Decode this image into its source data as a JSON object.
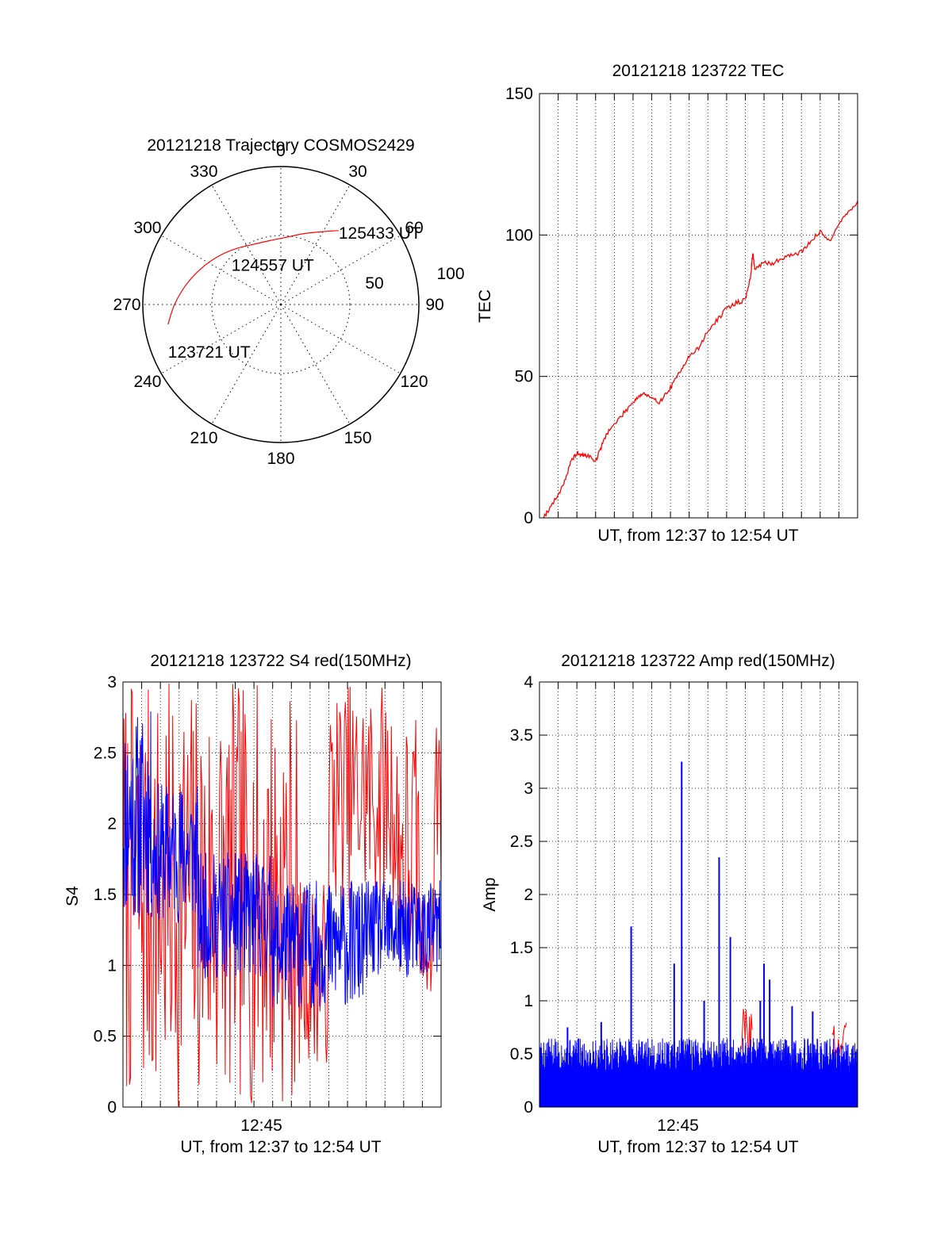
{
  "colors": {
    "red": "#ff0000",
    "blue": "#0000ff",
    "axis": "#000000"
  },
  "chart_data": [
    {
      "id": "polar",
      "type": "polar-trajectory",
      "title": "20121218 Trajectory COSMOS2429",
      "azimuth_labels": [
        "0",
        "30",
        "60",
        "90",
        "120",
        "150",
        "180",
        "210",
        "240",
        "270",
        "300",
        "330"
      ],
      "radial_labels": [
        "50",
        "100"
      ],
      "elevation_max": 100,
      "trajectory": [
        {
          "az": 260,
          "el": 83
        },
        {
          "az": 270,
          "el": 77
        },
        {
          "az": 282,
          "el": 70
        },
        {
          "az": 295,
          "el": 63
        },
        {
          "az": 308,
          "el": 57
        },
        {
          "az": 321,
          "el": 52
        },
        {
          "az": 335,
          "el": 48
        },
        {
          "az": 350,
          "el": 47
        },
        {
          "az": 5,
          "el": 49
        },
        {
          "az": 18,
          "el": 54
        },
        {
          "az": 30,
          "el": 61
        },
        {
          "az": 38,
          "el": 68
        }
      ],
      "annotations": [
        {
          "text": "125433 UT",
          "az": 38,
          "el": 68
        },
        {
          "text": "124557 UT",
          "az": 350,
          "el": 47
        },
        {
          "text": "123721 UT",
          "az": 260,
          "el": 83
        }
      ]
    },
    {
      "id": "tec",
      "type": "line",
      "title": "20121218 123722 TEC",
      "xlabel": "UT, from 12:37 to 12:54 UT",
      "ylabel": "TEC",
      "xlim": [
        0,
        17
      ],
      "ylim": [
        0,
        150
      ],
      "yticks": [
        0,
        50,
        100,
        150
      ],
      "series": [
        {
          "color": "red",
          "x": [
            0.2,
            0.5,
            1.0,
            1.4,
            1.7,
            2.0,
            2.3,
            2.6,
            3.0,
            3.3,
            3.6,
            4.0,
            4.5,
            5.0,
            5.3,
            5.6,
            6.0,
            6.4,
            6.8,
            7.2,
            7.6,
            8.0,
            8.5,
            9.0,
            9.5,
            10.0,
            10.5,
            11.0,
            11.3,
            11.4,
            11.5,
            12.0,
            12.5,
            13.0,
            13.5,
            14.0,
            14.5,
            15.0,
            15.5,
            16.0,
            16.5,
            17.0
          ],
          "y": [
            0,
            3,
            8,
            14,
            20,
            23,
            22,
            22,
            20,
            25,
            30,
            33,
            37,
            41,
            43,
            44,
            42,
            41,
            44,
            48,
            53,
            57,
            60,
            66,
            70,
            74,
            76,
            77,
            86,
            94,
            88,
            90,
            90,
            92,
            93,
            94,
            98,
            101,
            98,
            104,
            108,
            112
          ]
        }
      ]
    },
    {
      "id": "s4",
      "type": "line",
      "title": "20121218 123722 S4 red(150MHz)",
      "xlabel": "UT, from 12:37 to 12:54 UT",
      "ylabel": "S4",
      "xlim": [
        0,
        17
      ],
      "ylim": [
        0,
        3
      ],
      "yticks": [
        0,
        0.5,
        1,
        1.5,
        2,
        2.5,
        3
      ],
      "xtick_labels": [
        {
          "x": 7.4,
          "label": "12:45"
        }
      ],
      "series": [
        {
          "color": "red",
          "samples": 340,
          "seed": 7,
          "bands": [
            {
              "from": 0,
              "to": 9.3,
              "low": 0,
              "high": 3
            },
            {
              "from": 9.3,
              "to": 11.0,
              "low": 0.3,
              "high": 1.6
            },
            {
              "from": 11.0,
              "to": 14.5,
              "low": 1.4,
              "high": 3
            },
            {
              "from": 14.5,
              "to": 15.8,
              "low": 0.8,
              "high": 2.8
            },
            {
              "from": 15.8,
              "to": 16.6,
              "low": 0.8,
              "high": 1.5
            },
            {
              "from": 16.6,
              "to": 17.0,
              "low": 1.5,
              "high": 3
            }
          ]
        },
        {
          "color": "blue",
          "samples": 700,
          "seed": 11,
          "bands": [
            {
              "from": 0,
              "to": 1.5,
              "low": 1.3,
              "high": 2.8
            },
            {
              "from": 1.5,
              "to": 4.0,
              "low": 1.3,
              "high": 2.3
            },
            {
              "from": 4.0,
              "to": 8.0,
              "low": 0.9,
              "high": 1.8
            },
            {
              "from": 8.0,
              "to": 13.0,
              "low": 0.7,
              "high": 1.6
            },
            {
              "from": 13.0,
              "to": 17.0,
              "low": 0.9,
              "high": 1.6
            }
          ]
        }
      ]
    },
    {
      "id": "amp",
      "type": "line",
      "title": "20121218 123722 Amp red(150MHz)",
      "xlabel": "UT, from 12:37 to 12:54 UT",
      "ylabel": "Amp",
      "xlim": [
        0,
        17
      ],
      "ylim": [
        0,
        4
      ],
      "yticks": [
        0,
        0.5,
        1,
        1.5,
        2,
        2.5,
        3,
        3.5,
        4
      ],
      "xtick_labels": [
        {
          "x": 7.4,
          "label": "12:45"
        }
      ],
      "series": [
        {
          "color": "red",
          "samples": 120,
          "seed": 3,
          "bands": [
            {
              "from": 10.8,
              "to": 11.4,
              "low": 0.4,
              "high": 1.0
            },
            {
              "from": 15.6,
              "to": 16.4,
              "low": 0.4,
              "high": 0.8
            }
          ]
        },
        {
          "color": "blue",
          "samples": 1400,
          "seed": 5,
          "floor": 0.0,
          "bands": [
            {
              "from": 0,
              "to": 17,
              "low": 0.0,
              "high": 0.65
            }
          ]
        },
        {
          "color": "blue",
          "type": "spikes",
          "x": [
            4.9,
            7.2,
            7.6,
            9.6,
            10.2,
            12.0,
            12.3,
            1.5,
            3.3,
            13.5,
            14.6,
            8.8,
            11.8
          ],
          "y": [
            1.7,
            1.35,
            3.25,
            2.35,
            1.6,
            1.35,
            1.2,
            0.75,
            0.8,
            0.95,
            0.9,
            1.0,
            1.0
          ]
        }
      ]
    }
  ]
}
